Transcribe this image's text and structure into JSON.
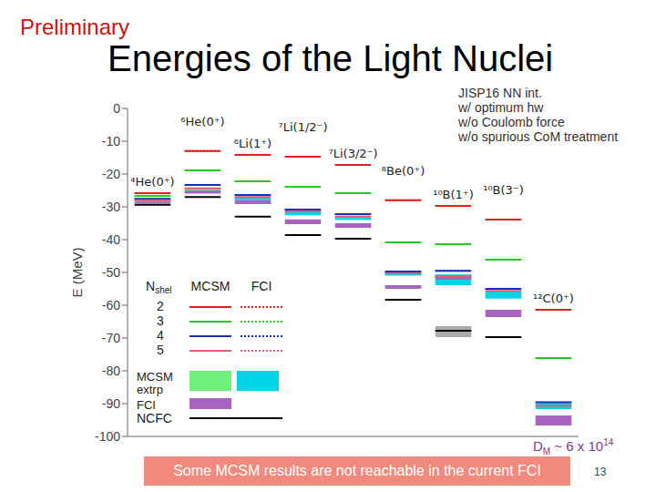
{
  "chart_data": {
    "type": "level_scheme",
    "title": "Energies of the Light Nuclei",
    "y_label": "E (MeV)",
    "ylim": [
      -100,
      0
    ],
    "yticks": [
      0,
      -10,
      -20,
      -30,
      -40,
      -50,
      -60,
      -70,
      -80,
      -90,
      -100
    ],
    "tick_labels": "y",
    "legend": "lower left",
    "legend_title": "Nshel",
    "categories": [
      "⁴He(0⁺)",
      "⁶He(0⁺)",
      "⁶Li(1⁺)",
      "⁷Li(1/2⁻)",
      "⁷Li(3/2⁻)",
      "⁸Be(0⁺)",
      "¹⁰B(1⁺)",
      "¹⁰B(3⁻)",
      "¹²C(0⁺)"
    ],
    "series": [
      {
        "name": "2",
        "method": "MCSM",
        "color": "#e02020",
        "line_style": "solid",
        "values": [
          -25.8,
          -13,
          -14.2,
          -14.7,
          -17.2,
          -28,
          -29.7,
          -33.9,
          -61.4
        ]
      },
      {
        "name": "3",
        "method": "MCSM",
        "color": "#22cc22",
        "line_style": "solid",
        "values": [
          -26.7,
          -18.9,
          -22.2,
          -23.9,
          -25.8,
          -40.8,
          -41.4,
          -46.1,
          -76.1
        ]
      },
      {
        "name": "4",
        "method": "MCSM",
        "color": "#1a2fbf",
        "line_style": "solid",
        "values": [
          -27.6,
          -23.3,
          -26.4,
          -30.8,
          -32.2,
          -49.7,
          -49.5,
          -55,
          -89.6
        ]
      },
      {
        "name": "5",
        "method": "MCSM",
        "color": "#e0607a",
        "line_style": "solid",
        "values": [
          -28,
          -24.4,
          -27,
          -31.4,
          -33,
          -50.3,
          -51.2,
          -55.6,
          -90.6
        ]
      },
      {
        "name": "2",
        "method": "FCI",
        "color": "#e02020",
        "line_style": "dotted",
        "values": [
          -25.8,
          -13,
          -14.2,
          -14.7,
          -17.2,
          -28,
          -29.7,
          -33.9,
          -61.4
        ]
      },
      {
        "name": "3",
        "method": "FCI",
        "color": "#22cc22",
        "line_style": "dotted",
        "values": [
          -26.7,
          -18.9,
          -22.2,
          -23.9,
          -25.8,
          -40.8,
          -41.4,
          -46.1,
          -76.1
        ]
      },
      {
        "name": "4",
        "method": "FCI",
        "color": "#1a2fbf",
        "line_style": "dotted",
        "values": [
          -27.6,
          -23.3,
          -26.4,
          -30.8,
          -32.2,
          -49.7,
          -49.5,
          -55,
          null
        ]
      },
      {
        "name": "5",
        "method": "FCI",
        "color": "#e0607a",
        "line_style": "dotted",
        "values": [
          -28,
          -24.4,
          -27,
          -31.4,
          -33,
          -50.3,
          -51.2,
          null,
          null
        ]
      },
      {
        "name": "NCFC",
        "color": "#000000",
        "line_style": "solid",
        "values": [
          -29.4,
          -27,
          -33,
          -38.6,
          -39.7,
          -58.3,
          -67.8,
          -69.7,
          null
        ]
      }
    ],
    "bands": [
      {
        "name": "MCSM extrp",
        "colors": [
          "#6ef07a",
          "#6ef07a",
          "#00d4e6",
          "#00d4e6",
          "#00d4e6",
          "#00d4e6",
          "#00d4e6",
          "#00d4e6",
          "#00d4e6"
        ],
        "lo": [
          -28.6,
          -25.0,
          -28.0,
          -32.6,
          -34.0,
          -51.0,
          -53.9,
          -58.0,
          -91.7
        ],
        "hi": [
          -27.8,
          -24.2,
          -27.2,
          -31.6,
          -33.2,
          -50.0,
          -50.6,
          -55.8,
          -89.4
        ]
      },
      {
        "name": "FCI",
        "color": "#a864c0",
        "lo": [
          -29.0,
          -26.0,
          -29.2,
          -35.3,
          -36.4,
          -55.0,
          -52.2,
          -63.6,
          -96.7
        ],
        "hi": [
          -28.4,
          -25.0,
          -28.0,
          -33.8,
          -35.0,
          -53.9,
          -51.0,
          -61.4,
          -93.6
        ]
      },
      {
        "color": "#aaaaaa",
        "lo": [
          null,
          null,
          null,
          null,
          null,
          null,
          -69.7,
          null,
          null
        ],
        "hi": [
          null,
          null,
          null,
          null,
          null,
          null,
          -66.4,
          null,
          null
        ]
      }
    ]
  },
  "page": {
    "preliminary": "Preliminary",
    "info": [
      "JISP16 NN int.",
      "w/ optimum hw",
      "w/o Coulomb force",
      "w/o spurious CoM treatment"
    ],
    "dm_note": {
      "base": "D",
      "sub": "M",
      "text": " ~ 6 x 10",
      "sup": "14"
    },
    "footnote": "Some MCSM results are not reachable in the current FCI",
    "page_number": "13"
  }
}
